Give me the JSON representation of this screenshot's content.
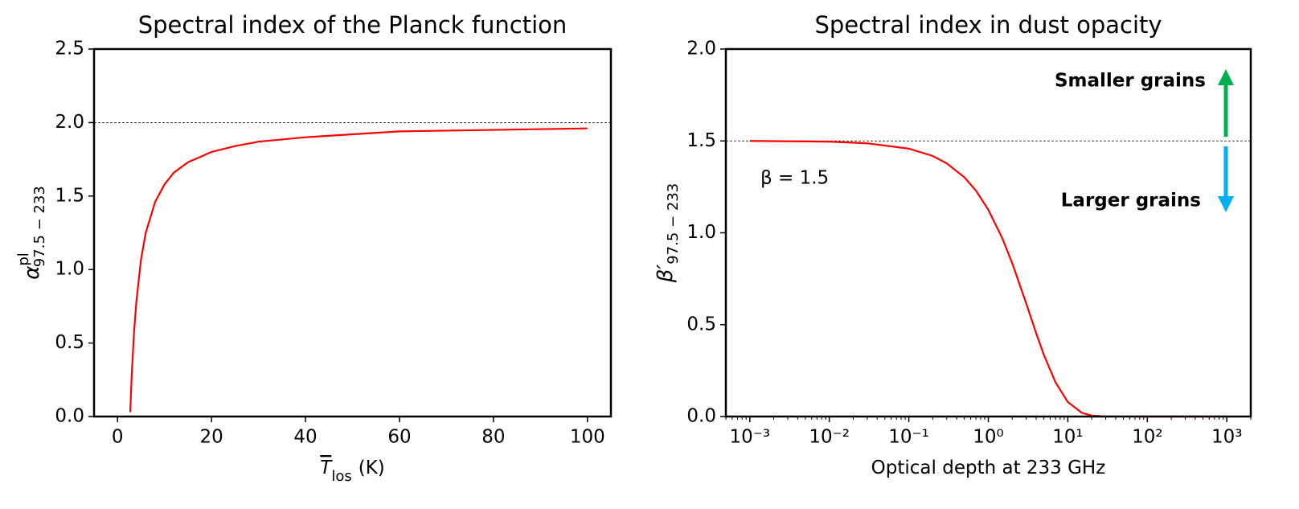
{
  "chart_data": [
    {
      "type": "line",
      "title": "Spectral index of the Planck function",
      "xlabel": {
        "symbol": "T",
        "sub": "los",
        "unit": "(K)"
      },
      "ylabel": {
        "symbol": "α",
        "sup": "pl",
        "sub": "97.5 − 233"
      },
      "x": [
        2.7,
        3,
        3.5,
        4,
        5,
        6,
        8,
        10,
        12,
        15,
        20,
        25,
        30,
        40,
        50,
        60,
        80,
        100
      ],
      "series": [
        {
          "color": "#ff0000",
          "values": [
            0.03,
            0.27,
            0.57,
            0.78,
            1.07,
            1.25,
            1.46,
            1.58,
            1.66,
            1.73,
            1.8,
            1.84,
            1.87,
            1.9,
            1.92,
            1.94,
            1.95,
            1.96
          ]
        }
      ],
      "xlim": [
        -5,
        105
      ],
      "xticks": [
        0,
        20,
        40,
        60,
        80,
        100
      ],
      "ylim": [
        0,
        2.5
      ],
      "yticks": [
        {
          "value": 0,
          "label": "0.0"
        },
        0.5,
        {
          "value": 1,
          "label": "1.0"
        },
        1.5,
        {
          "value": 2,
          "label": "2.0"
        },
        2.5
      ],
      "hlines": [
        2
      ]
    },
    {
      "type": "line",
      "title": "Spectral index in dust opacity",
      "xlabel": {
        "text": "Optical depth at 233 GHz"
      },
      "ylabel": {
        "symbol": "β′",
        "sub": "97.5 − 233"
      },
      "xscale": "log",
      "x": [
        0.001,
        0.01,
        0.03,
        0.1,
        0.2,
        0.3,
        0.5,
        0.7,
        1,
        1.5,
        2,
        3,
        4,
        5,
        7,
        10,
        15,
        20,
        30,
        100,
        1000
      ],
      "series": [
        {
          "color": "#ff0000",
          "values": [
            1.5,
            1.496,
            1.487,
            1.458,
            1.418,
            1.378,
            1.302,
            1.229,
            1.125,
            0.97,
            0.834,
            0.615,
            0.453,
            0.335,
            0.186,
            0.079,
            0.02,
            0.005,
            0.0003,
            0,
            0
          ]
        }
      ],
      "xlim": [
        0.0005,
        2000
      ],
      "xticks": [
        {
          "value": 0.001,
          "label": "10⁻³"
        },
        {
          "value": 0.01,
          "label": "10⁻²"
        },
        {
          "value": 0.1,
          "label": "10⁻¹"
        },
        {
          "value": 1,
          "label": "10⁰"
        },
        {
          "value": 10,
          "label": "10¹"
        },
        {
          "value": 100,
          "label": "10²"
        },
        {
          "value": 1000,
          "label": "10³"
        }
      ],
      "ylim": [
        0,
        2
      ],
      "yticks": [
        {
          "value": 0,
          "label": "0.0"
        },
        0.5,
        {
          "value": 1,
          "label": "1.0"
        },
        1.5,
        {
          "value": 2,
          "label": "2.0"
        }
      ],
      "hlines": [
        1.5
      ],
      "annotations": [
        {
          "text": "β = 1.5",
          "color": "#000000"
        },
        {
          "text": "Smaller grains",
          "color": "#00b050"
        },
        {
          "text": "Larger grains",
          "color": "#00b0f0"
        }
      ]
    }
  ]
}
